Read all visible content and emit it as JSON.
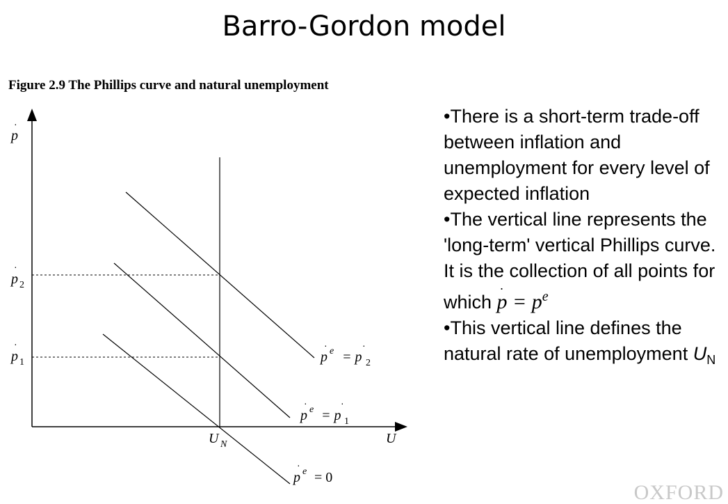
{
  "slide": {
    "title": "Barro-Gordon model",
    "caption": "Figure 2.9 The Phillips curve and natural unemployment",
    "brand": "OXFORD"
  },
  "diagram": {
    "y_axis_label": "p",
    "x_axis_label": "U",
    "tick_p2": "p",
    "tick_p2_sub": "2",
    "tick_p1": "p",
    "tick_p1_sub": "1",
    "un_label": "U",
    "un_sub": "N",
    "curves": [
      {
        "label_lhs": "p",
        "label_sup": "e",
        "label_rhs": "= p",
        "label_sub": "2"
      },
      {
        "label_lhs": "p",
        "label_sup": "e",
        "label_rhs": "= p",
        "label_sub": "1"
      },
      {
        "label_lhs": "p",
        "label_sup": "e",
        "label_rhs": "= 0",
        "label_sub": ""
      }
    ]
  },
  "bullets": {
    "b1": "•There is a short-term trade-off between inflation and unemployment for every level of expected inflation",
    "b2_text": "•The vertical line represents the 'long-term' vertical Phillips curve. It is the collection of all points for which",
    "b2_math_lhs": "p",
    "b2_math_eq": " = ",
    "b2_math_rhs": "p",
    "b2_math_sup": "e",
    "b3_text": "•This vertical line defines the natural rate of unemployment ",
    "b3_var": "U",
    "b3_sub": "N"
  }
}
